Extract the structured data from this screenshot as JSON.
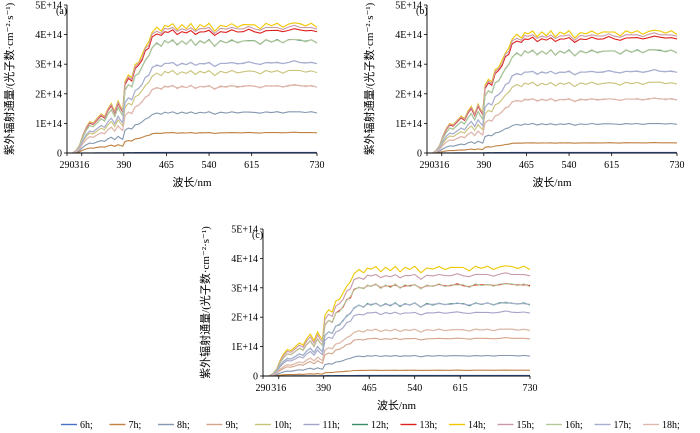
{
  "chart_data": [
    {
      "type": "line",
      "title": "",
      "panel_label": "(a)",
      "xlabel": "波长/nm",
      "ylabel": "紫外辐射通量/(光子数·cm⁻²·s⁻¹)",
      "xlim": [
        290,
        730
      ],
      "ylim": [
        0,
        500000000000000.0
      ],
      "x_ticks": [
        "290",
        "316",
        "390",
        "465",
        "540",
        "615",
        "730"
      ],
      "y_ticks": [
        "0",
        "1E+14",
        "2E+14",
        "3E+14",
        "4E+14",
        "5E+14"
      ],
      "peak_values": [
        2000000000000.0,
        70000000000000.0,
        140000000000000.0,
        230000000000000.0,
        280000000000000.0,
        310000000000000.0,
        385000000000000.0,
        420000000000000.0,
        440000000000000.0,
        430000000000000.0,
        385000000000000.0,
        310000000000000.0,
        230000000000000.0
      ]
    },
    {
      "type": "line",
      "title": "",
      "panel_label": "(b)",
      "xlabel": "波长/nm",
      "ylabel": "紫外辐射通量/(光子数·cm⁻²·s⁻¹)",
      "xlim": [
        290,
        730
      ],
      "ylim": [
        0,
        500000000000000.0
      ],
      "x_ticks": [
        "290",
        "316",
        "390",
        "465",
        "540",
        "615",
        "730"
      ],
      "y_ticks": [
        "0",
        "1E+14",
        "2E+14",
        "3E+14",
        "4E+14",
        "5E+14"
      ],
      "peak_values": [
        2000000000000.0,
        35000000000000.0,
        100000000000000.0,
        185000000000000.0,
        240000000000000.0,
        280000000000000.0,
        350000000000000.0,
        395000000000000.0,
        415000000000000.0,
        405000000000000.0,
        350000000000000.0,
        280000000000000.0,
        185000000000000.0
      ]
    },
    {
      "type": "line",
      "title": "",
      "panel_label": "(c)",
      "xlabel": "波长/nm",
      "ylabel": "紫外辐射通量/(光子数·cm⁻²·s⁻¹)",
      "xlim": [
        290,
        730
      ],
      "ylim": [
        0,
        500000000000000.0
      ],
      "x_ticks": [
        "290",
        "316",
        "390",
        "465",
        "540",
        "615",
        "730"
      ],
      "y_ticks": [
        "0",
        "1E+14",
        "2E+14",
        "3E+14",
        "4E+14",
        "5E+14"
      ],
      "peak_values": [
        2000000000000.0,
        20000000000000.0,
        70000000000000.0,
        130000000000000.0,
        160000000000000.0,
        220000000000000.0,
        250000000000000.0,
        315000000000000.0,
        375000000000000.0,
        350000000000000.0,
        315000000000000.0,
        250000000000000.0,
        160000000000000.0
      ]
    }
  ],
  "series": [
    {
      "name": "6h;",
      "color": "#4472c4"
    },
    {
      "name": "7h;",
      "color": "#c08040"
    },
    {
      "name": "8h;",
      "color": "#8497b0"
    },
    {
      "name": "9h;",
      "color": "#d4a58a"
    },
    {
      "name": "10h;",
      "color": "#c9c27a"
    },
    {
      "name": "11h;",
      "color": "#a4a4c8"
    },
    {
      "name": "12h;",
      "color": "#3a8a6a"
    },
    {
      "name": "13h;",
      "color": "#e02020"
    },
    {
      "name": "14h;",
      "color": "#f0c800"
    },
    {
      "name": "15h;",
      "color": "#c89aa8"
    },
    {
      "name": "16h;",
      "color": "#b5c89a"
    },
    {
      "name": "17h;",
      "color": "#a8b0d0"
    },
    {
      "name": "18h;",
      "color": "#e0b8b0"
    }
  ]
}
